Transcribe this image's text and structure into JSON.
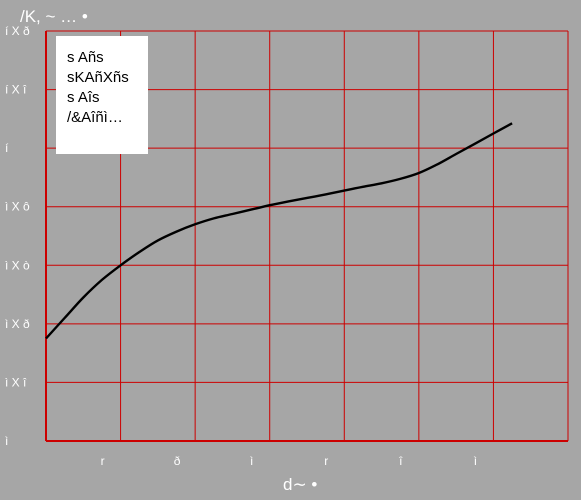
{
  "chart_data": {
    "type": "line",
    "title": "",
    "xlabel": "d∼ •",
    "ylabel": "/K, ~ … •",
    "x_tick_labels": [
      "r",
      "ð",
      "ì",
      "r",
      "î",
      "ì"
    ],
    "y_tick_labels": [
      "ì",
      "ì X î",
      "ì X ð",
      "ì X ò",
      "ì X ô",
      "í",
      "í X î",
      "í X ð"
    ],
    "ylim": [
      0,
      1.4
    ],
    "grid": true,
    "grid_color": "#cc0000",
    "line_color": "#000000",
    "background_color": "#a6a6a6",
    "legend_lines": [
      "s Añs",
      "sKAñXñs",
      "s Aîs",
      "/&Aîñì…"
    ],
    "series": [
      {
        "x": [
          0,
          0.5,
          1.0,
          1.5,
          2.0,
          2.5,
          3.0,
          3.5,
          4.0,
          4.5,
          5.0,
          5.5,
          6.0,
          6.5,
          7.0,
          7.5,
          8.0,
          8.5,
          9.0,
          9.5,
          10.0,
          10.5,
          11.0,
          11.5,
          12.0,
          12.5
        ],
        "y": [
          0.35,
          0.42,
          0.49,
          0.55,
          0.6,
          0.645,
          0.685,
          0.715,
          0.74,
          0.76,
          0.775,
          0.79,
          0.805,
          0.818,
          0.83,
          0.842,
          0.855,
          0.868,
          0.88,
          0.895,
          0.915,
          0.945,
          0.98,
          1.015,
          1.05,
          1.085
        ]
      }
    ]
  }
}
